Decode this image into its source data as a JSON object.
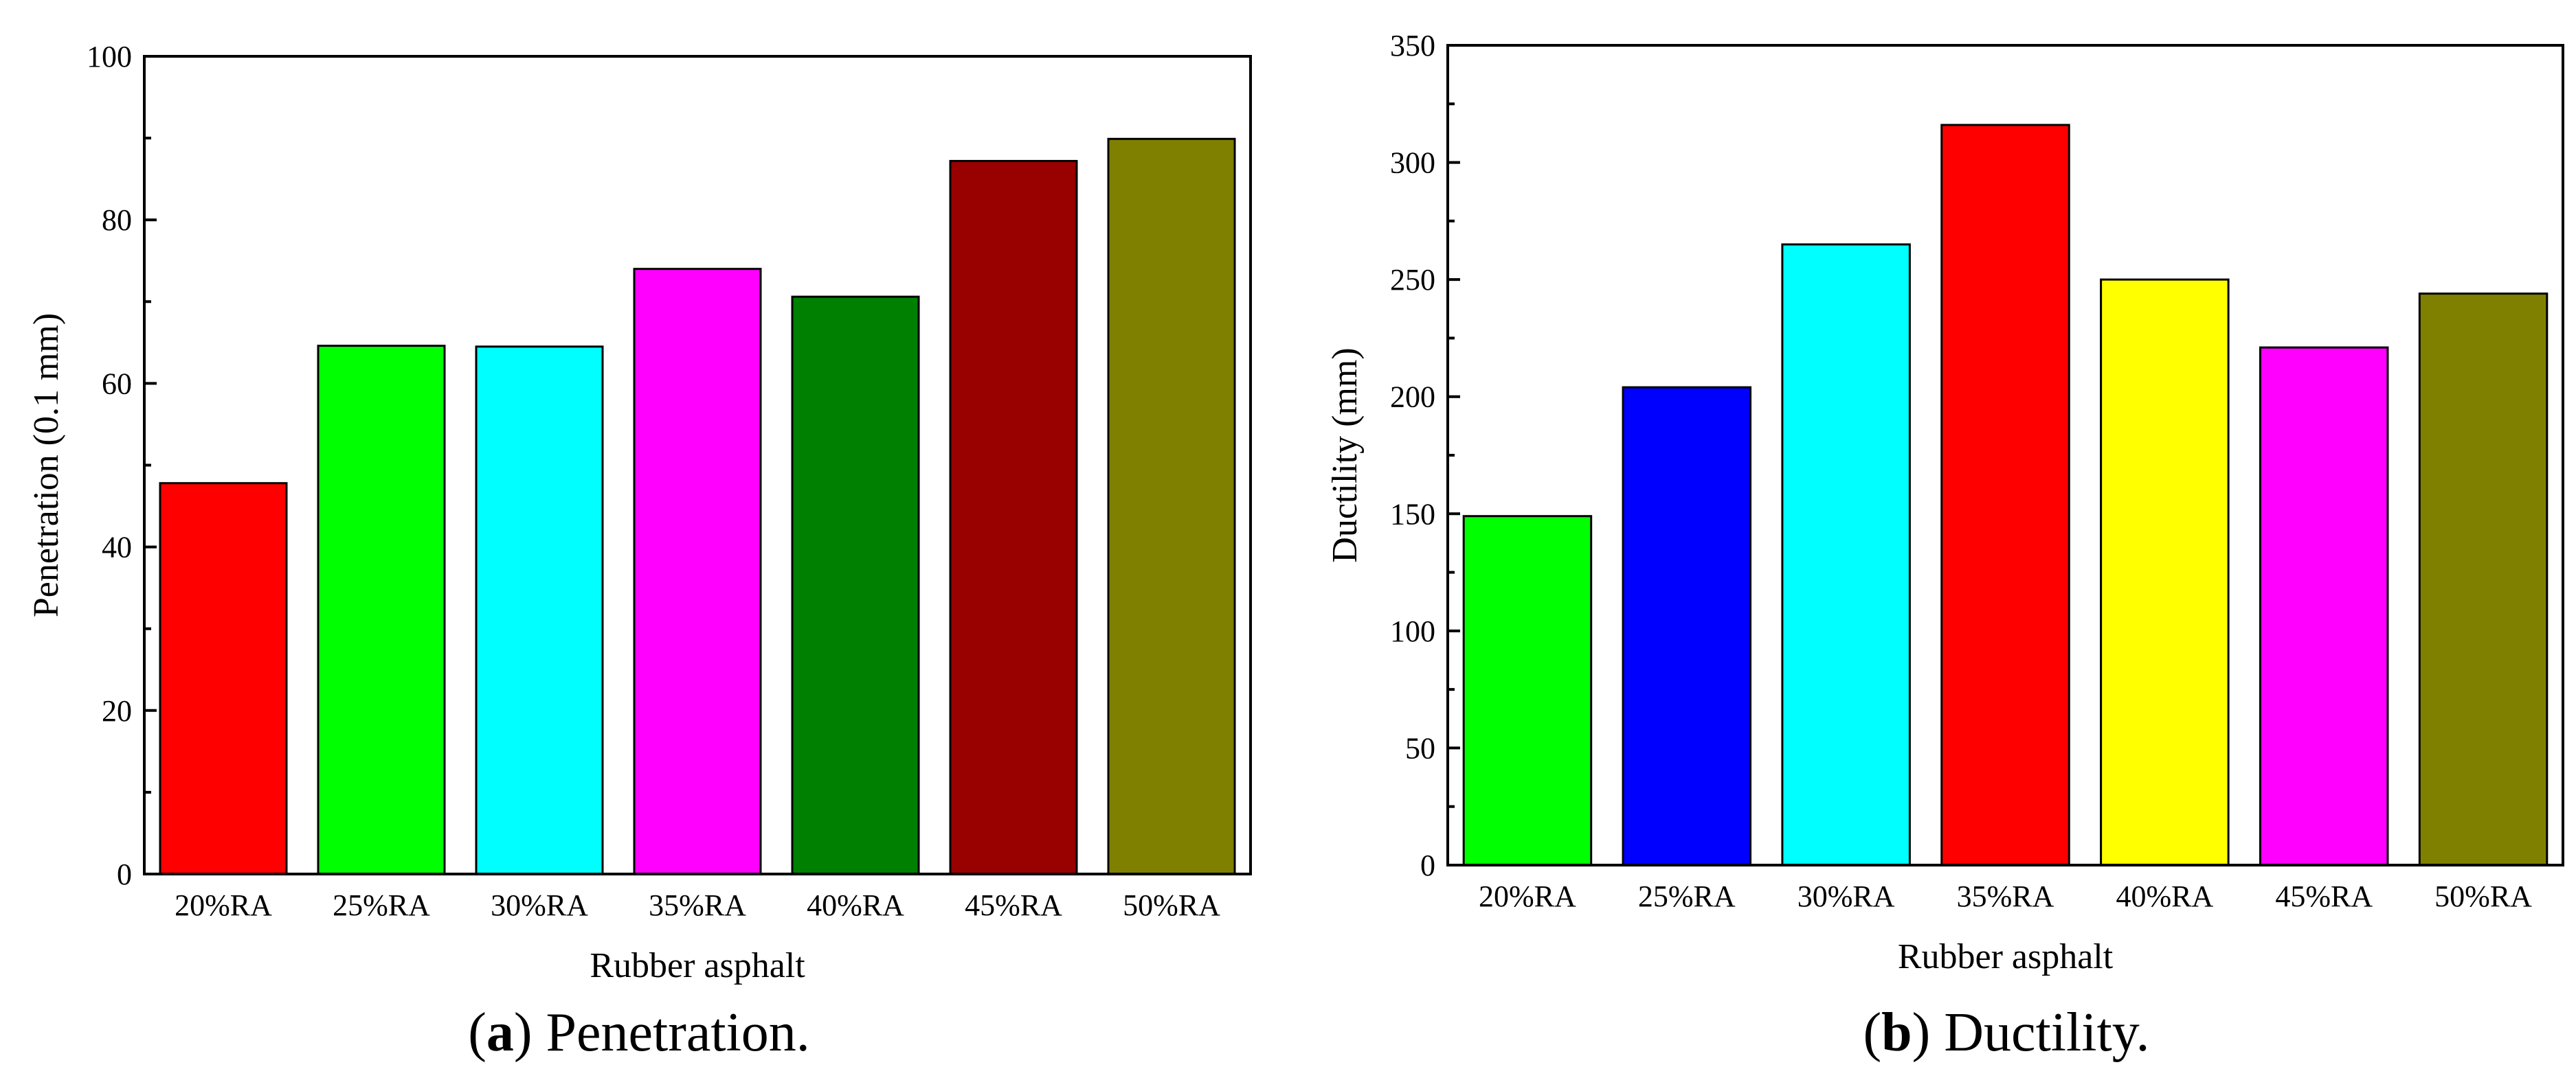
{
  "chart_data": [
    {
      "type": "bar",
      "title": "",
      "xlabel": "Rubber asphalt",
      "ylabel": "Penetration (0.1 mm)",
      "categories": [
        "20%RA",
        "25%RA",
        "30%RA",
        "35%RA",
        "40%RA",
        "45%RA",
        "50%RA"
      ],
      "values": [
        47.8,
        64.6,
        64.5,
        74.0,
        70.6,
        87.2,
        89.9
      ],
      "colors": [
        "#ff0000",
        "#00ff00",
        "#00ffff",
        "#ff00ff",
        "#008000",
        "#990000",
        "#808000"
      ],
      "ylim": [
        0,
        100
      ],
      "yticks": [
        0,
        20,
        40,
        60,
        80,
        100
      ],
      "yminor_step": 10,
      "grid": false,
      "caption_label": "a",
      "caption_text": "Penetration."
    },
    {
      "type": "bar",
      "title": "",
      "xlabel": "Rubber asphalt",
      "ylabel": "Ductility (mm)",
      "categories": [
        "20%RA",
        "25%RA",
        "30%RA",
        "35%RA",
        "40%RA",
        "45%RA",
        "50%RA"
      ],
      "values": [
        149,
        204,
        265,
        316,
        250,
        221,
        244
      ],
      "colors": [
        "#00ff00",
        "#0000ff",
        "#00ffff",
        "#ff0000",
        "#ffff00",
        "#ff00ff",
        "#808000"
      ],
      "ylim": [
        0,
        350
      ],
      "yticks": [
        0,
        50,
        100,
        150,
        200,
        250,
        300,
        350
      ],
      "yminor_step": 25,
      "grid": false,
      "caption_label": "b",
      "caption_text": "Ductility."
    }
  ]
}
